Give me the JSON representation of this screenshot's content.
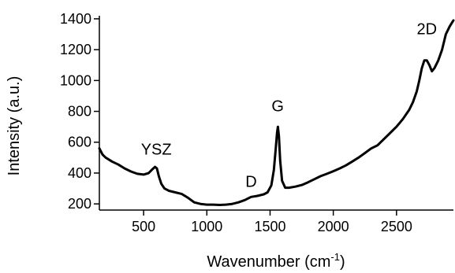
{
  "chart_data": {
    "type": "line",
    "title": "",
    "xlabel": "Wavenumber (cm",
    "xlabel_sup": "-1",
    "xlabel_suffix": ")",
    "ylabel": "Intensity (a.u.)",
    "xlim": [
      150,
      2950
    ],
    "ylim": [
      160,
      1420
    ],
    "x_ticks": [
      500,
      1000,
      1500,
      2000,
      2500
    ],
    "x_tick_labels": [
      "500",
      "1000",
      "1500",
      "2000",
      "2500"
    ],
    "y_ticks": [
      200,
      400,
      600,
      800,
      1000,
      1200,
      1400
    ],
    "y_tick_labels": [
      "200",
      "400",
      "600",
      "800",
      "1000",
      "1200",
      "1400"
    ],
    "grid": false,
    "line_color": "#000000",
    "series": [
      {
        "x": [
          150,
          175,
          200,
          250,
          300,
          350,
          400,
          450,
          500,
          540,
          570,
          590,
          605,
          620,
          640,
          665,
          700,
          750,
          800,
          850,
          900,
          950,
          1000,
          1050,
          1100,
          1150,
          1200,
          1250,
          1300,
          1350,
          1400,
          1450,
          1480,
          1510,
          1530,
          1545,
          1555,
          1562,
          1570,
          1580,
          1595,
          1620,
          1650,
          1700,
          1750,
          1800,
          1850,
          1900,
          1950,
          2000,
          2050,
          2100,
          2150,
          2200,
          2250,
          2300,
          2350,
          2400,
          2450,
          2500,
          2550,
          2600,
          2630,
          2660,
          2680,
          2700,
          2720,
          2740,
          2760,
          2780,
          2800,
          2830,
          2860,
          2890,
          2920,
          2950
        ],
        "y": [
          560,
          520,
          500,
          475,
          455,
          430,
          410,
          395,
          390,
          400,
          425,
          440,
          430,
          380,
          330,
          300,
          285,
          275,
          265,
          240,
          210,
          200,
          195,
          195,
          193,
          195,
          200,
          210,
          225,
          245,
          252,
          262,
          275,
          320,
          420,
          560,
          660,
          700,
          640,
          480,
          350,
          305,
          305,
          312,
          322,
          340,
          360,
          380,
          395,
          412,
          430,
          450,
          475,
          500,
          530,
          560,
          580,
          620,
          660,
          700,
          750,
          810,
          860,
          930,
          1000,
          1080,
          1130,
          1130,
          1100,
          1060,
          1080,
          1130,
          1200,
          1300,
          1350,
          1390
        ]
      }
    ],
    "annotations": [
      {
        "text": "YSZ",
        "x": 600,
        "y": 520
      },
      {
        "text": "D",
        "x": 1350,
        "y": 310
      },
      {
        "text": "G",
        "x": 1560,
        "y": 800
      },
      {
        "text": "2D",
        "x": 2740,
        "y": 1300
      }
    ]
  }
}
